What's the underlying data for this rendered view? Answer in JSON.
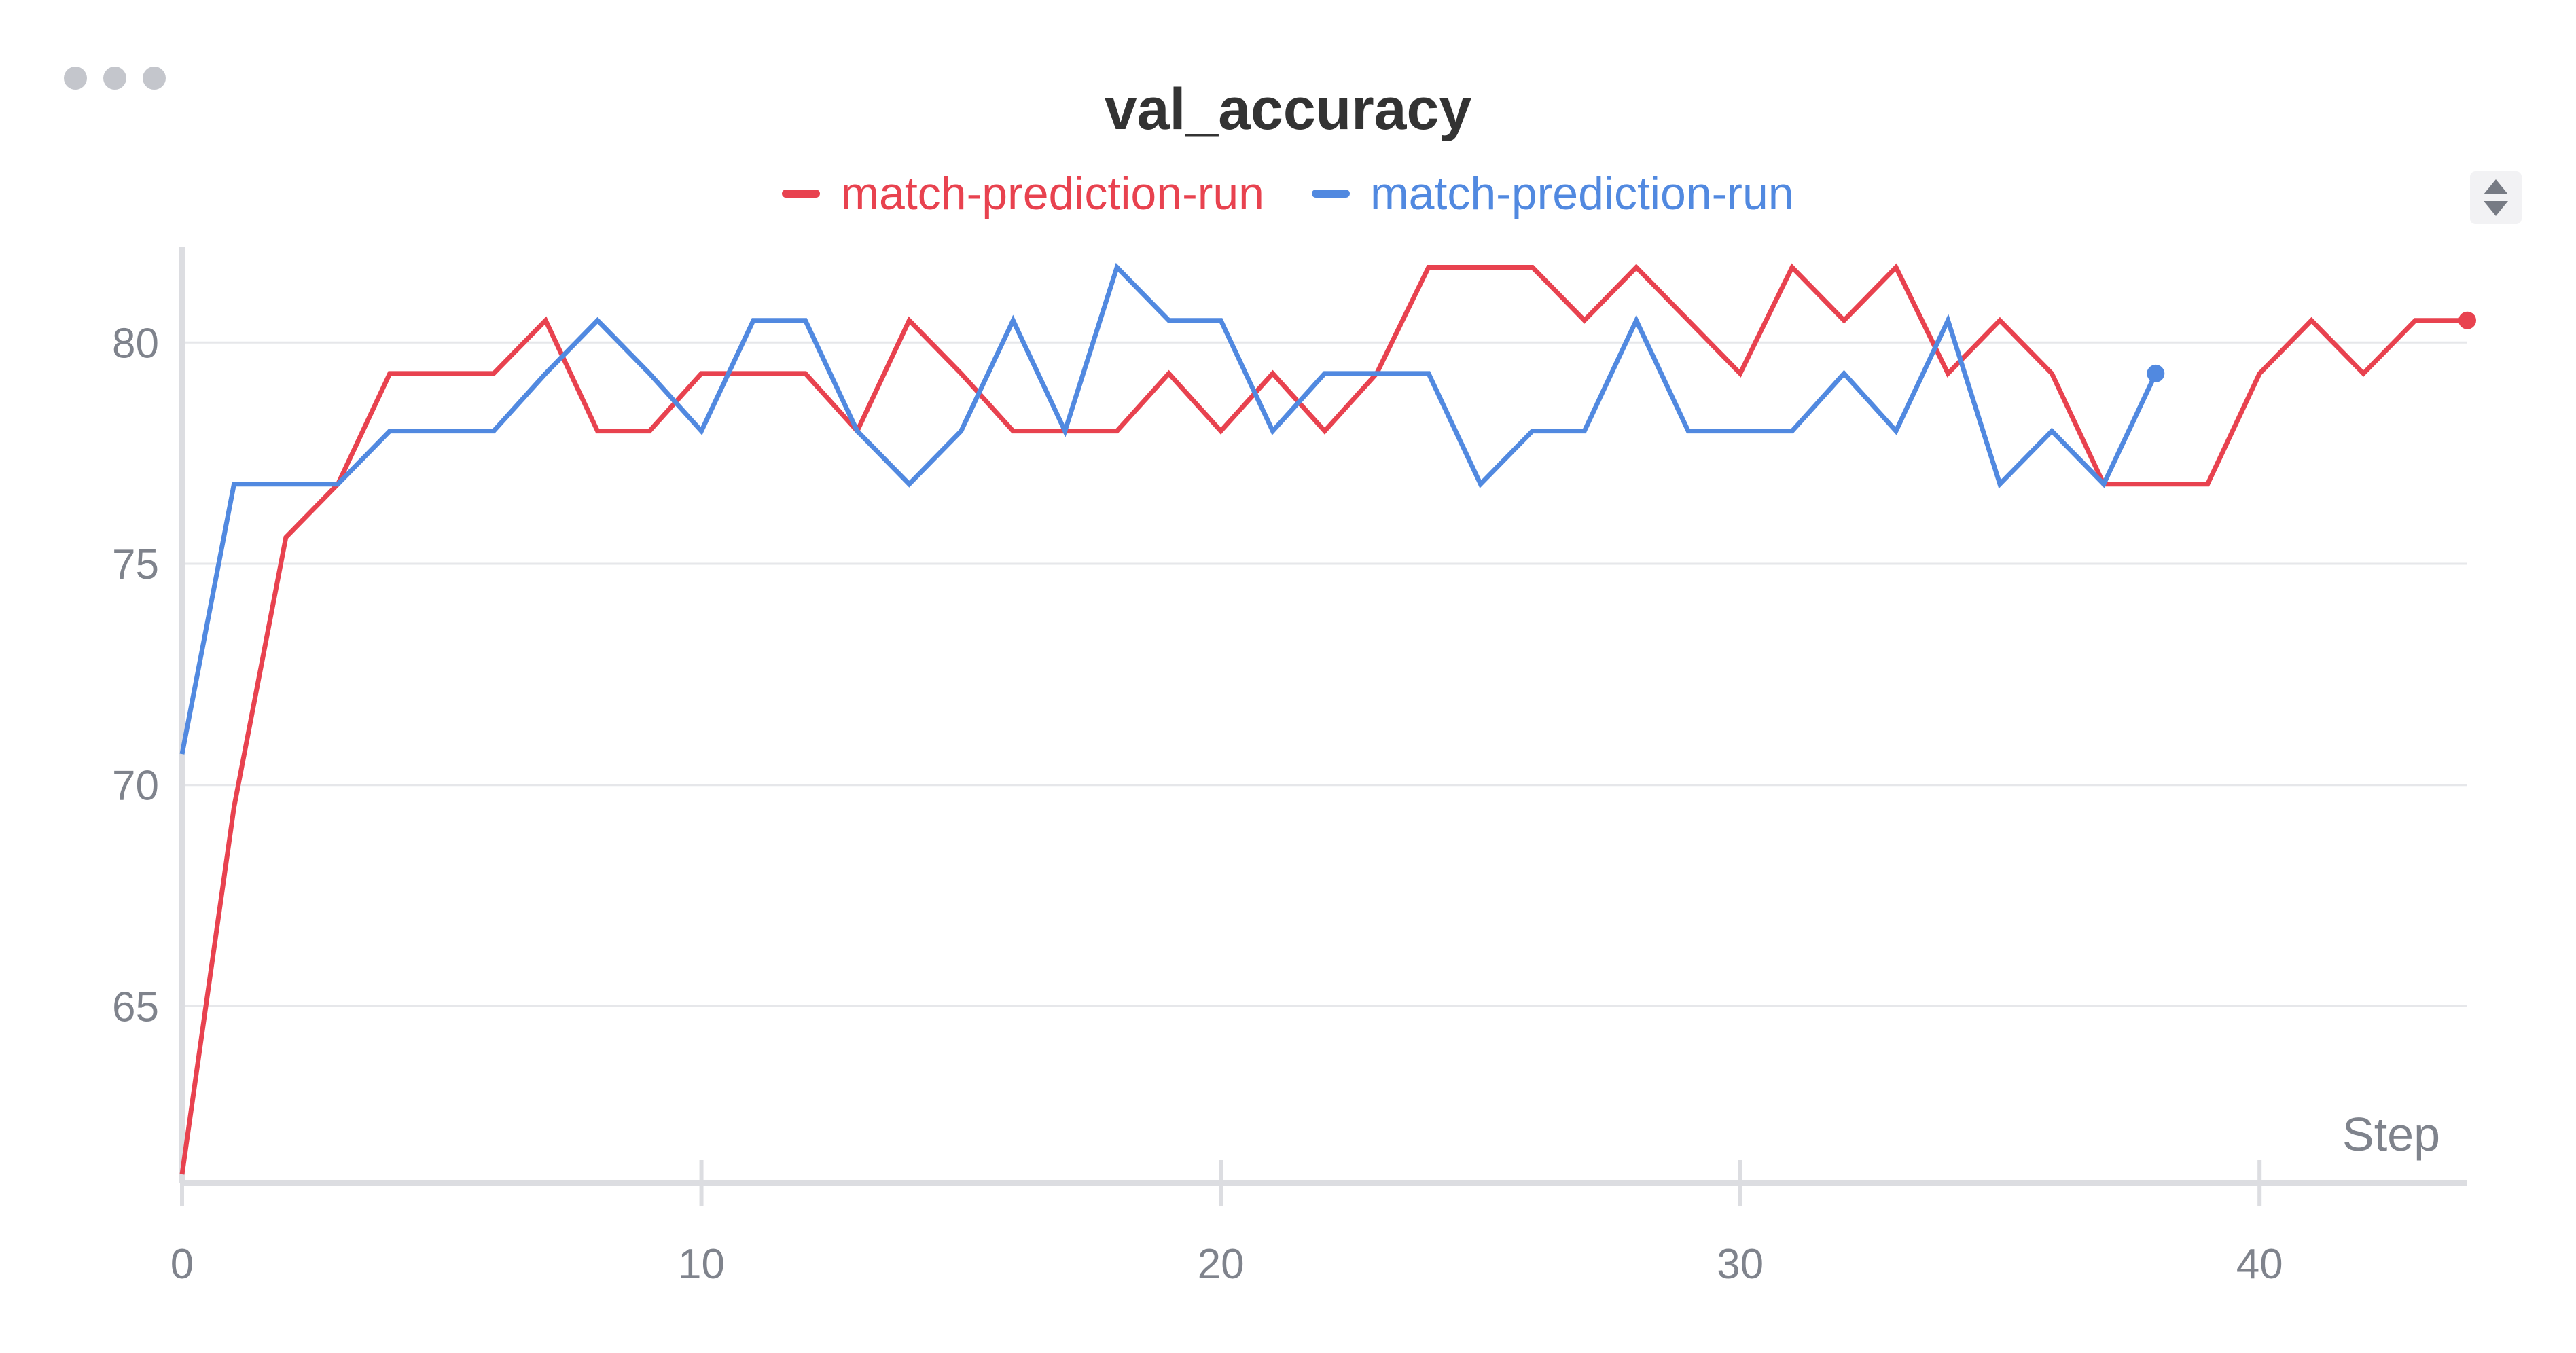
{
  "chart_data": {
    "type": "line",
    "title": "val_accuracy",
    "xlabel": "Step",
    "ylabel": "",
    "xlim": [
      0,
      44
    ],
    "ylim": [
      61,
      82
    ],
    "x_ticks": [
      0,
      10,
      20,
      30,
      40
    ],
    "y_ticks": [
      65,
      70,
      75,
      80
    ],
    "grid": true,
    "legend_position": "top-center",
    "series": [
      {
        "name": "match-prediction-run",
        "color": "#e8424f",
        "x": [
          0,
          1,
          2,
          3,
          4,
          5,
          6,
          7,
          8,
          9,
          10,
          11,
          12,
          13,
          14,
          15,
          16,
          17,
          18,
          19,
          20,
          21,
          22,
          23,
          24,
          25,
          26,
          27,
          28,
          29,
          30,
          31,
          32,
          33,
          34,
          35,
          36,
          37,
          38,
          39,
          40,
          41,
          42,
          43,
          44
        ],
        "values": [
          61.2,
          69.5,
          75.6,
          76.8,
          79.3,
          79.3,
          79.3,
          80.5,
          78.0,
          78.0,
          79.3,
          79.3,
          79.3,
          78.0,
          80.5,
          79.3,
          78.0,
          78.0,
          78.0,
          79.3,
          78.0,
          79.3,
          78.0,
          79.3,
          81.7,
          81.7,
          81.7,
          80.5,
          81.7,
          80.5,
          79.3,
          81.7,
          80.5,
          81.7,
          79.3,
          80.5,
          79.3,
          76.8,
          76.8,
          76.8,
          79.3,
          80.5,
          79.3,
          80.5,
          80.5
        ]
      },
      {
        "name": "match-prediction-run",
        "color": "#5189e0",
        "x": [
          0,
          1,
          2,
          3,
          4,
          5,
          6,
          7,
          8,
          9,
          10,
          11,
          12,
          13,
          14,
          15,
          16,
          17,
          18,
          19,
          20,
          21,
          22,
          23,
          24,
          25,
          26,
          27,
          28,
          29,
          30,
          31,
          32,
          33,
          34,
          35,
          36,
          37,
          38
        ],
        "values": [
          70.7,
          76.8,
          76.8,
          76.8,
          78.0,
          78.0,
          78.0,
          79.3,
          80.5,
          79.3,
          78.0,
          80.5,
          80.5,
          78.0,
          76.8,
          78.0,
          80.5,
          78.0,
          81.7,
          80.5,
          80.5,
          78.0,
          79.3,
          79.3,
          79.3,
          76.8,
          78.0,
          78.0,
          80.5,
          78.0,
          78.0,
          78.0,
          79.3,
          78.0,
          80.5,
          76.8,
          78.0,
          76.8,
          79.3
        ]
      }
    ]
  }
}
